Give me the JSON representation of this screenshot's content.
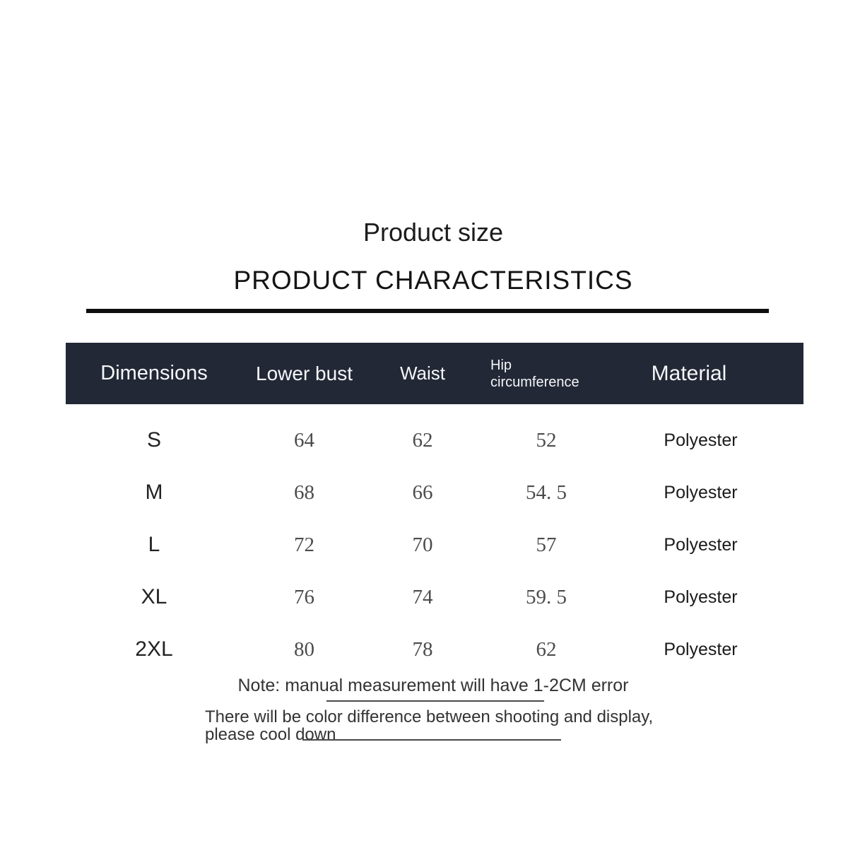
{
  "header": {
    "title": "Product size",
    "subtitle": "PRODUCT CHARACTERISTICS"
  },
  "table": {
    "columns": {
      "dimensions": "Dimensions",
      "lower_bust": "Lower bust",
      "waist": "Waist",
      "hip": "Hip circumference",
      "material": "Material"
    },
    "rows": [
      {
        "size": "S",
        "lower_bust": "64",
        "waist": "62",
        "hip": "52",
        "material": "Polyester"
      },
      {
        "size": "M",
        "lower_bust": "68",
        "waist": "66",
        "hip": "54. 5",
        "material": "Polyester"
      },
      {
        "size": "L",
        "lower_bust": "72",
        "waist": "70",
        "hip": "57",
        "material": "Polyester"
      },
      {
        "size": "XL",
        "lower_bust": "76",
        "waist": "74",
        "hip": "59. 5",
        "material": "Polyester"
      },
      {
        "size": "2XL",
        "lower_bust": "80",
        "waist": "78",
        "hip": "62",
        "material": "Polyester"
      }
    ]
  },
  "notes": {
    "measurement_error": "Note: manual measurement will have 1-2CM error",
    "color_difference": "There will be color difference between shooting and display, please cool down"
  },
  "colors": {
    "header_bg": "#222836",
    "header_text": "#f5f6f8",
    "page_bg": "#ffffff",
    "rule": "#0f0f0f"
  }
}
